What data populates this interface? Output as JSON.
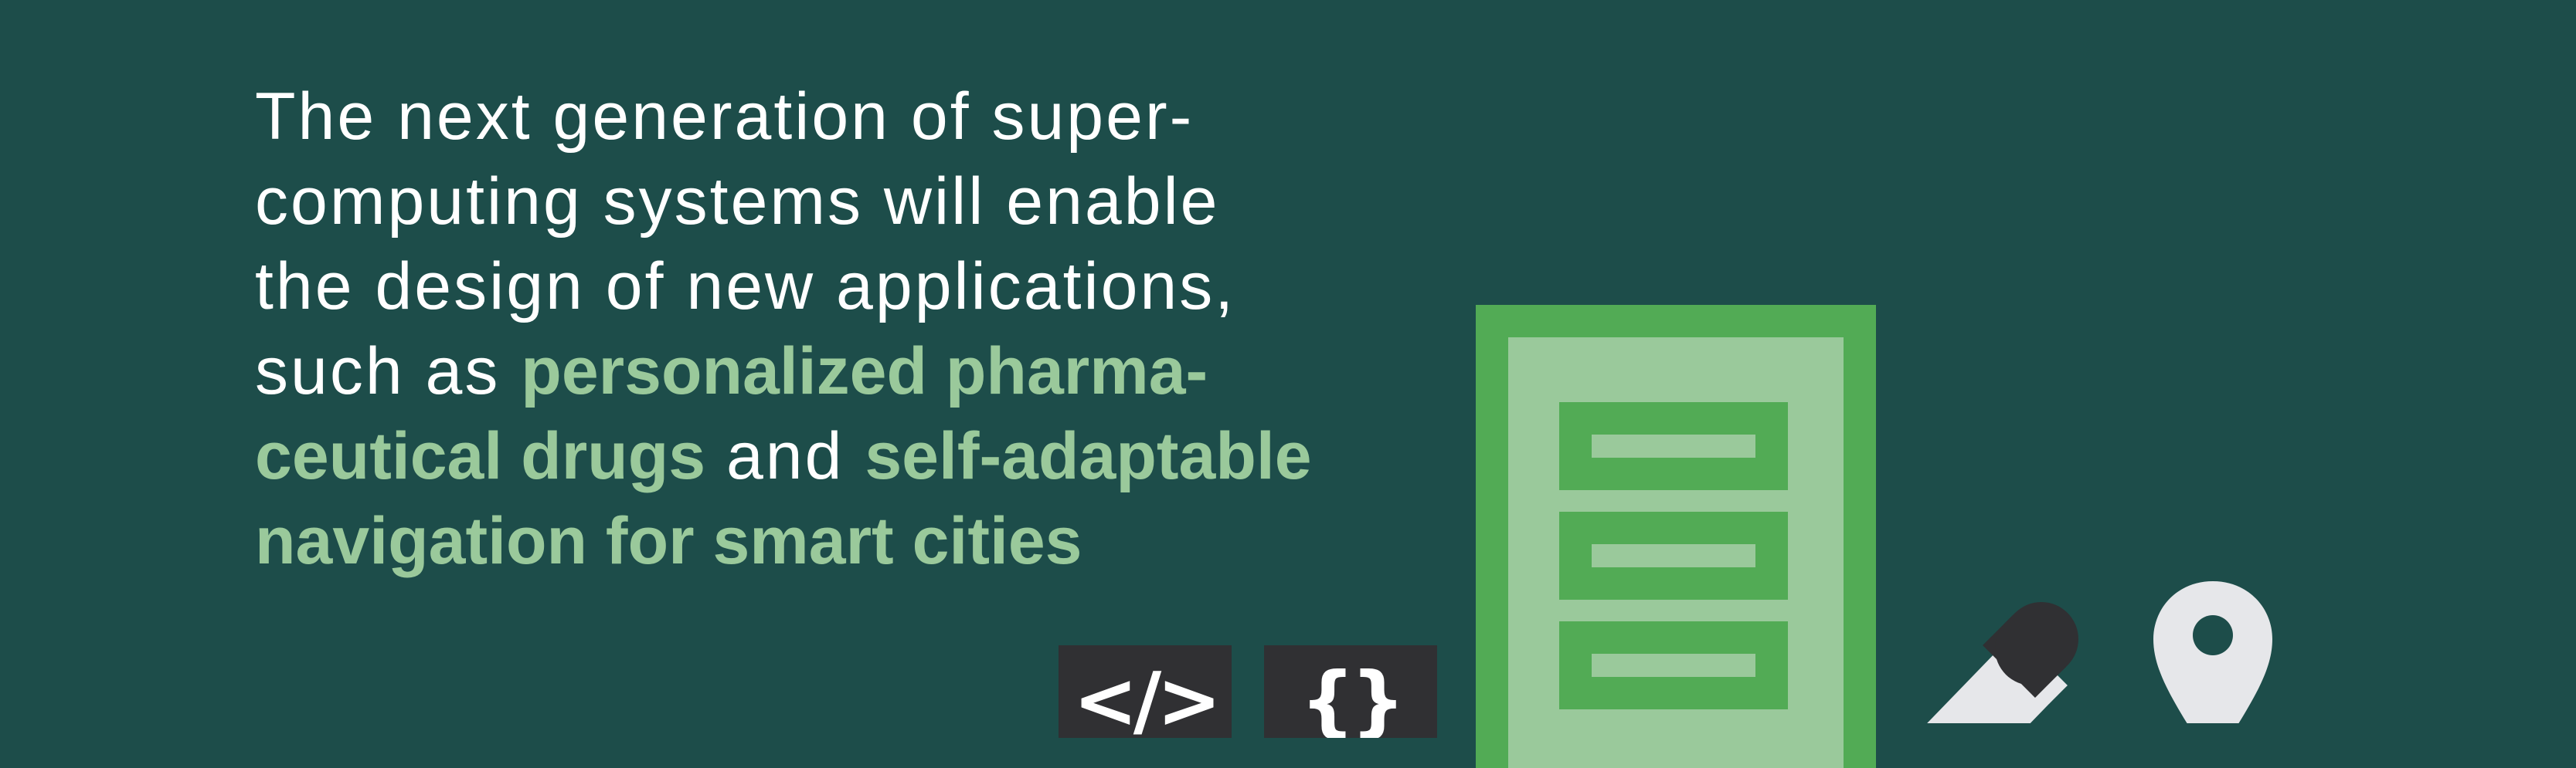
{
  "headline": {
    "lines": [
      {
        "text": "The next generation of super-"
      },
      {
        "text": "computing systems will enable"
      },
      {
        "text": "the design of new applications,"
      },
      {
        "before": "such as ",
        "highlight": "personalized pharma-"
      },
      {
        "highlight": "ceutical drugs",
        "middle": " and ",
        "highlight2": "self-adaptable"
      },
      {
        "highlight": "navigation for smart cities"
      }
    ]
  },
  "illustration": {
    "code_tiles": [
      {
        "glyph": "</>",
        "icon": "html-code-icon"
      },
      {
        "glyph": "{}",
        "icon": "braces-code-icon"
      }
    ],
    "document_icon": "document-list-icon",
    "document_rows": 3,
    "pill_icon": "capsule-icon",
    "map_pin_icon": "map-pin-icon"
  },
  "colors": {
    "background": "#1d4d4a",
    "text": "#ffffff",
    "accent_light": "#9ac99b",
    "accent_green": "#52ab55",
    "dark_tile": "#303033",
    "light_gray": "#e6e7ea"
  }
}
